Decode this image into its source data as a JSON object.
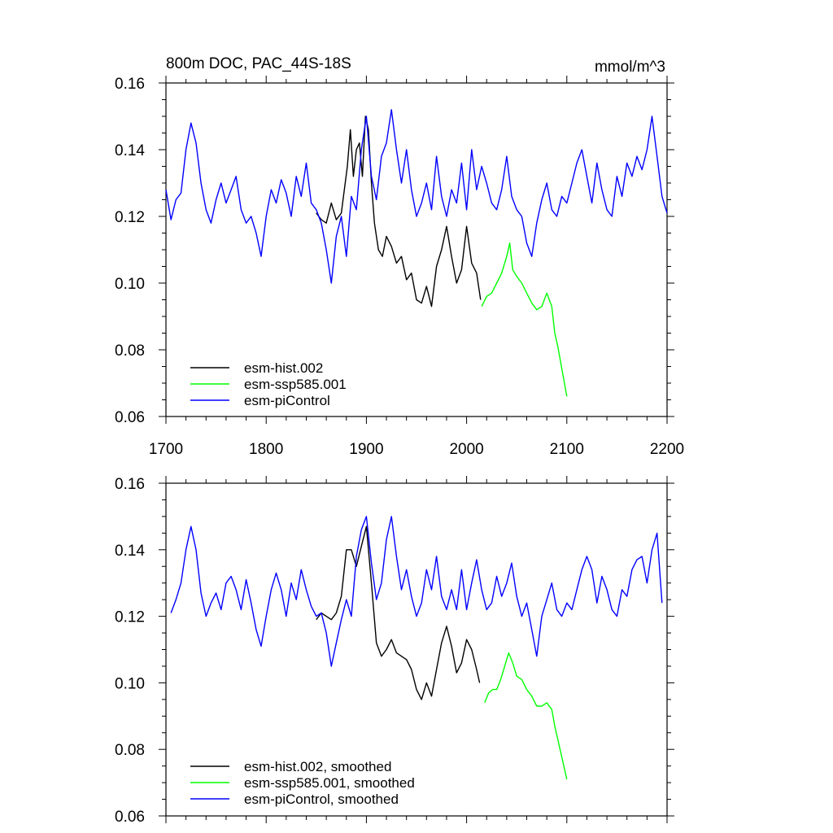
{
  "chart_data": [
    {
      "type": "line",
      "title_left": "800m DOC, PAC_44S-18S",
      "title_right": "mmol/m^3",
      "xlim": [
        1700,
        2200
      ],
      "ylim": [
        0.06,
        0.16
      ],
      "xticks": [
        "1700",
        "1800",
        "1900",
        "2000",
        "2100",
        "2200"
      ],
      "yticks": [
        "0.06",
        "0.08",
        "0.10",
        "0.12",
        "0.14",
        "0.16"
      ],
      "legend_position": "bottom-left",
      "series": [
        {
          "name": "esm-hist.002",
          "color": "#000000",
          "x": [
            1850,
            1855,
            1860,
            1865,
            1870,
            1875,
            1878,
            1881,
            1884,
            1887,
            1890,
            1893,
            1896,
            1899,
            1902,
            1905,
            1908,
            1912,
            1916,
            1920,
            1925,
            1930,
            1935,
            1940,
            1945,
            1950,
            1955,
            1960,
            1965,
            1970,
            1975,
            1980,
            1985,
            1990,
            1995,
            2000,
            2005,
            2010,
            2014
          ],
          "y": [
            0.121,
            0.119,
            0.118,
            0.124,
            0.119,
            0.121,
            0.128,
            0.135,
            0.146,
            0.132,
            0.14,
            0.142,
            0.132,
            0.15,
            0.146,
            0.13,
            0.118,
            0.11,
            0.108,
            0.114,
            0.111,
            0.106,
            0.108,
            0.101,
            0.103,
            0.095,
            0.094,
            0.099,
            0.093,
            0.105,
            0.11,
            0.117,
            0.108,
            0.1,
            0.104,
            0.117,
            0.106,
            0.103,
            0.095
          ]
        },
        {
          "name": "esm-ssp585.001",
          "color": "#00ff00",
          "x": [
            2015,
            2020,
            2025,
            2030,
            2035,
            2040,
            2043,
            2046,
            2050,
            2055,
            2060,
            2065,
            2070,
            2075,
            2080,
            2085,
            2088,
            2091,
            2094,
            2097,
            2100
          ],
          "y": [
            0.093,
            0.096,
            0.097,
            0.1,
            0.103,
            0.108,
            0.112,
            0.104,
            0.102,
            0.1,
            0.097,
            0.094,
            0.092,
            0.093,
            0.097,
            0.093,
            0.085,
            0.081,
            0.076,
            0.071,
            0.066
          ]
        },
        {
          "name": "esm-piControl",
          "color": "#0000ff",
          "x": [
            1700,
            1705,
            1710,
            1715,
            1720,
            1725,
            1730,
            1735,
            1740,
            1745,
            1750,
            1755,
            1760,
            1765,
            1770,
            1775,
            1780,
            1785,
            1790,
            1795,
            1800,
            1805,
            1810,
            1815,
            1820,
            1825,
            1830,
            1835,
            1840,
            1845,
            1850,
            1855,
            1860,
            1865,
            1870,
            1875,
            1880,
            1885,
            1890,
            1895,
            1900,
            1905,
            1910,
            1915,
            1920,
            1925,
            1930,
            1935,
            1940,
            1945,
            1950,
            1955,
            1960,
            1965,
            1970,
            1975,
            1980,
            1985,
            1990,
            1995,
            2000,
            2005,
            2010,
            2015,
            2020,
            2025,
            2030,
            2035,
            2040,
            2045,
            2050,
            2055,
            2060,
            2065,
            2070,
            2075,
            2080,
            2085,
            2090,
            2095,
            2100,
            2105,
            2110,
            2115,
            2120,
            2125,
            2130,
            2135,
            2140,
            2145,
            2150,
            2155,
            2160,
            2165,
            2170,
            2175,
            2180,
            2185,
            2190,
            2195,
            2200
          ],
          "y": [
            0.128,
            0.119,
            0.125,
            0.127,
            0.14,
            0.148,
            0.142,
            0.13,
            0.122,
            0.118,
            0.125,
            0.13,
            0.124,
            0.128,
            0.132,
            0.122,
            0.118,
            0.12,
            0.115,
            0.108,
            0.12,
            0.128,
            0.124,
            0.131,
            0.127,
            0.12,
            0.132,
            0.126,
            0.136,
            0.124,
            0.122,
            0.118,
            0.11,
            0.1,
            0.114,
            0.12,
            0.108,
            0.126,
            0.122,
            0.14,
            0.15,
            0.132,
            0.125,
            0.138,
            0.142,
            0.152,
            0.14,
            0.13,
            0.14,
            0.128,
            0.12,
            0.124,
            0.13,
            0.122,
            0.138,
            0.126,
            0.12,
            0.128,
            0.124,
            0.136,
            0.122,
            0.14,
            0.128,
            0.135,
            0.13,
            0.124,
            0.122,
            0.128,
            0.138,
            0.126,
            0.122,
            0.12,
            0.112,
            0.108,
            0.118,
            0.125,
            0.13,
            0.122,
            0.12,
            0.126,
            0.124,
            0.13,
            0.136,
            0.14,
            0.132,
            0.124,
            0.136,
            0.128,
            0.122,
            0.12,
            0.132,
            0.126,
            0.136,
            0.132,
            0.138,
            0.134,
            0.14,
            0.15,
            0.138,
            0.126,
            0.121
          ]
        }
      ]
    },
    {
      "type": "line",
      "xlim": [
        1700,
        2200
      ],
      "ylim": [
        0.06,
        0.16
      ],
      "yticks": [
        "0.06",
        "0.08",
        "0.10",
        "0.12",
        "0.14",
        "0.16"
      ],
      "legend_position": "bottom-left",
      "series": [
        {
          "name": "esm-hist.002, smoothed",
          "color": "#000000",
          "x": [
            1850,
            1855,
            1860,
            1865,
            1870,
            1875,
            1880,
            1885,
            1890,
            1895,
            1900,
            1905,
            1910,
            1915,
            1920,
            1925,
            1930,
            1935,
            1940,
            1945,
            1950,
            1955,
            1960,
            1965,
            1970,
            1975,
            1980,
            1985,
            1990,
            1995,
            2000,
            2005,
            2010,
            2013
          ],
          "y": [
            0.119,
            0.121,
            0.12,
            0.119,
            0.121,
            0.126,
            0.14,
            0.14,
            0.135,
            0.141,
            0.147,
            0.13,
            0.112,
            0.108,
            0.11,
            0.113,
            0.109,
            0.108,
            0.107,
            0.104,
            0.098,
            0.095,
            0.1,
            0.096,
            0.104,
            0.112,
            0.117,
            0.111,
            0.103,
            0.106,
            0.113,
            0.11,
            0.104,
            0.1
          ]
        },
        {
          "name": "esm-ssp585.001, smoothed",
          "color": "#00ff00",
          "x": [
            2018,
            2022,
            2026,
            2030,
            2034,
            2038,
            2042,
            2046,
            2050,
            2055,
            2060,
            2065,
            2070,
            2075,
            2080,
            2085,
            2088,
            2091,
            2094,
            2097,
            2100
          ],
          "y": [
            0.094,
            0.097,
            0.098,
            0.098,
            0.101,
            0.105,
            0.109,
            0.106,
            0.102,
            0.101,
            0.098,
            0.096,
            0.093,
            0.093,
            0.094,
            0.092,
            0.087,
            0.083,
            0.079,
            0.075,
            0.071
          ]
        },
        {
          "name": "esm-piControl, smoothed",
          "color": "#0000ff",
          "x": [
            1705,
            1710,
            1715,
            1720,
            1725,
            1730,
            1735,
            1740,
            1745,
            1750,
            1755,
            1760,
            1765,
            1770,
            1775,
            1780,
            1785,
            1790,
            1795,
            1800,
            1805,
            1810,
            1815,
            1820,
            1825,
            1830,
            1835,
            1840,
            1845,
            1850,
            1855,
            1860,
            1865,
            1870,
            1875,
            1880,
            1885,
            1890,
            1895,
            1900,
            1905,
            1910,
            1915,
            1920,
            1925,
            1930,
            1935,
            1940,
            1945,
            1950,
            1955,
            1960,
            1965,
            1970,
            1975,
            1980,
            1985,
            1990,
            1995,
            2000,
            2005,
            2010,
            2015,
            2020,
            2025,
            2030,
            2035,
            2040,
            2045,
            2050,
            2055,
            2060,
            2065,
            2070,
            2075,
            2080,
            2085,
            2090,
            2095,
            2100,
            2105,
            2110,
            2115,
            2120,
            2125,
            2130,
            2135,
            2140,
            2145,
            2150,
            2155,
            2160,
            2165,
            2170,
            2175,
            2180,
            2185,
            2190,
            2195
          ],
          "y": [
            0.121,
            0.125,
            0.13,
            0.14,
            0.147,
            0.14,
            0.127,
            0.12,
            0.124,
            0.127,
            0.122,
            0.13,
            0.132,
            0.128,
            0.122,
            0.131,
            0.124,
            0.116,
            0.111,
            0.12,
            0.128,
            0.133,
            0.128,
            0.12,
            0.13,
            0.125,
            0.134,
            0.128,
            0.123,
            0.12,
            0.121,
            0.115,
            0.105,
            0.112,
            0.119,
            0.125,
            0.12,
            0.138,
            0.146,
            0.15,
            0.136,
            0.125,
            0.13,
            0.143,
            0.15,
            0.138,
            0.128,
            0.134,
            0.126,
            0.12,
            0.124,
            0.134,
            0.128,
            0.138,
            0.126,
            0.122,
            0.128,
            0.122,
            0.134,
            0.122,
            0.13,
            0.137,
            0.128,
            0.122,
            0.124,
            0.132,
            0.126,
            0.13,
            0.136,
            0.126,
            0.12,
            0.124,
            0.116,
            0.108,
            0.12,
            0.125,
            0.13,
            0.122,
            0.12,
            0.124,
            0.122,
            0.128,
            0.134,
            0.138,
            0.134,
            0.124,
            0.132,
            0.128,
            0.122,
            0.12,
            0.128,
            0.126,
            0.134,
            0.137,
            0.138,
            0.13,
            0.14,
            0.145,
            0.124
          ]
        }
      ]
    }
  ]
}
